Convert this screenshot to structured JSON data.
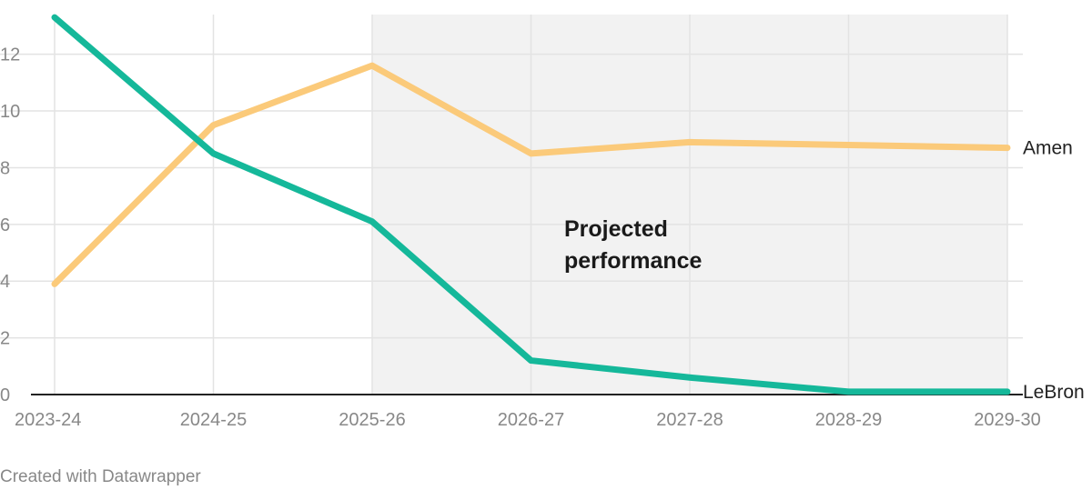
{
  "chart_data": {
    "type": "line",
    "title": "",
    "xlabel": "",
    "ylabel": "",
    "categories": [
      "2023-24",
      "2024-25",
      "2025-26",
      "2026-27",
      "2027-28",
      "2028-29",
      "2029-30"
    ],
    "ylim": [
      0,
      13.4
    ],
    "yticks": [
      0,
      2,
      4,
      6,
      8,
      10,
      12
    ],
    "grid": true,
    "projected_region": {
      "from": "2025-26",
      "to": "2029-30",
      "label_lines": [
        "Projected",
        "performance"
      ],
      "color": "#f2f2f2"
    },
    "series": [
      {
        "name": "Amen",
        "color": "#fbca7a",
        "values": [
          3.9,
          9.5,
          11.6,
          8.5,
          8.9,
          8.8,
          8.7
        ]
      },
      {
        "name": "LeBron",
        "color": "#15b89a",
        "values": [
          13.3,
          8.5,
          6.1,
          1.2,
          0.6,
          0.1,
          0.1
        ]
      }
    ]
  },
  "credit": "Created with Datawrapper"
}
